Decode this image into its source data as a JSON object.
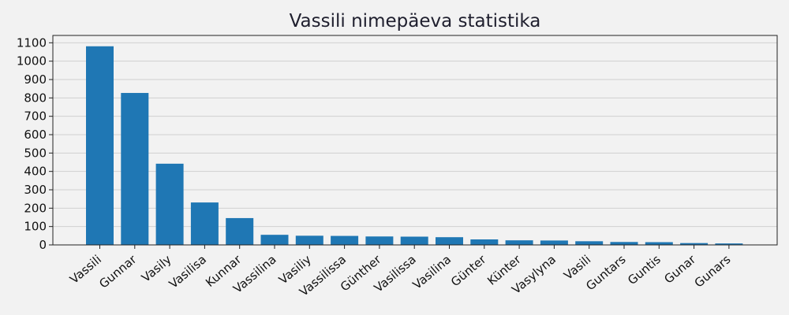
{
  "chart_data": {
    "type": "bar",
    "title": "Vassili nimepäeva statistika",
    "xlabel": "",
    "ylabel": "",
    "categories": [
      "Vassili",
      "Gunnar",
      "Vasily",
      "Vasilisa",
      "Kunnar",
      "Vassilina",
      "Vasiliy",
      "Vassilissa",
      "Günther",
      "Vasilissa",
      "Vasilina",
      "Günter",
      "Künter",
      "Vasylyna",
      "Vasili",
      "Guntars",
      "Guntis",
      "Gunar",
      "Gunars"
    ],
    "values": [
      1081,
      827,
      442,
      231,
      146,
      55,
      50,
      49,
      46,
      45,
      42,
      30,
      25,
      24,
      20,
      16,
      15,
      10,
      8
    ],
    "ylim": [
      0,
      1140
    ],
    "yticks": [
      0,
      100,
      200,
      300,
      400,
      500,
      600,
      700,
      800,
      900,
      1000,
      1100
    ],
    "grid": true,
    "bar_color": "#1f77b4",
    "legend": "none"
  }
}
